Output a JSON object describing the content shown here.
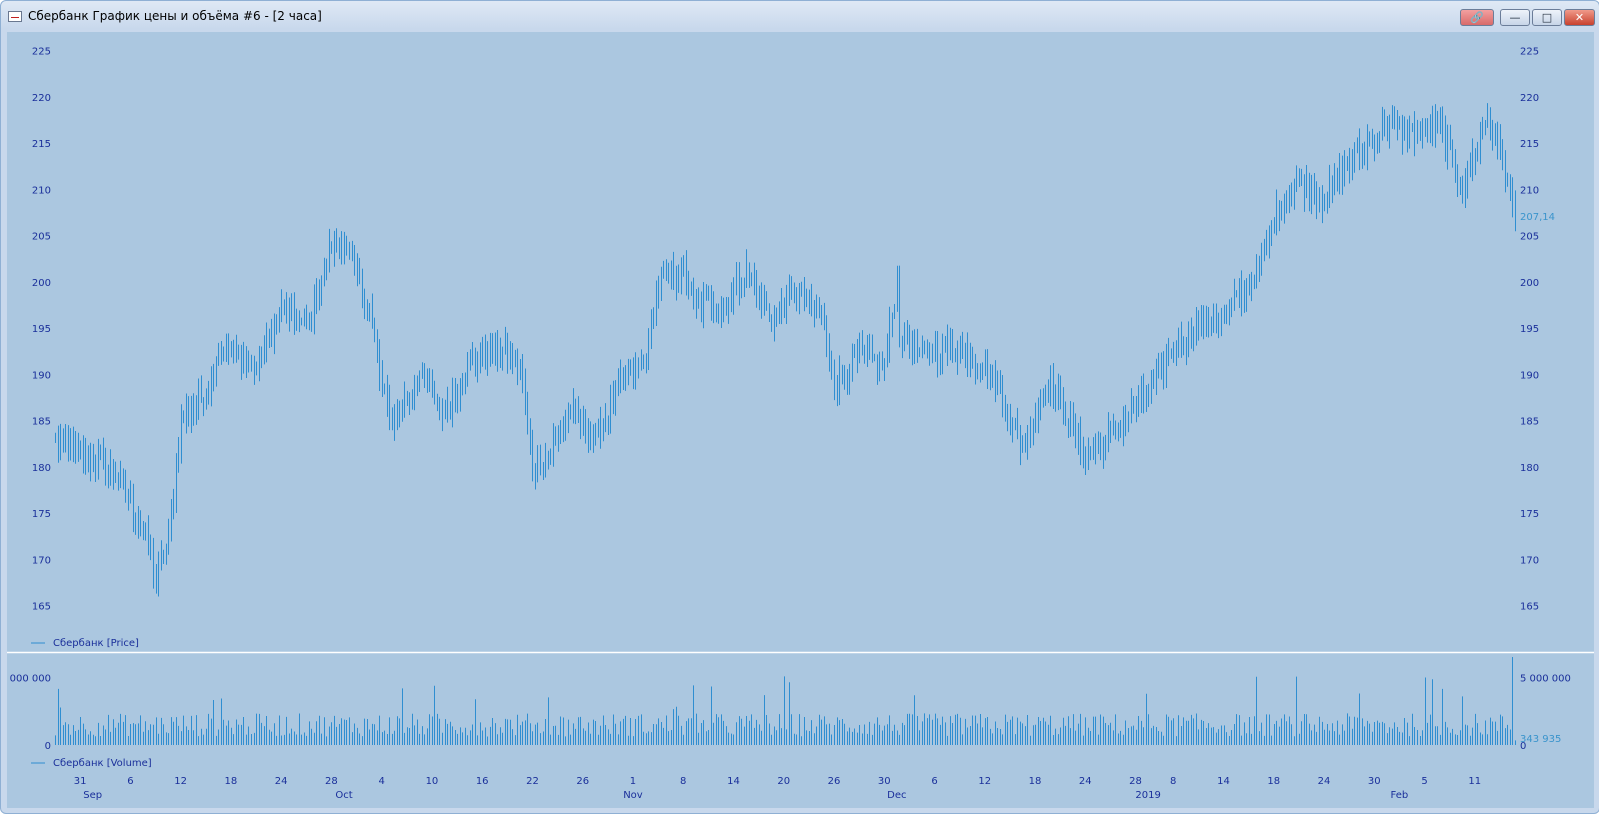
{
  "window": {
    "title": "Сбербанк График цены и объёма #6 - [2 часа]",
    "buttons": {
      "link": "🔗",
      "minimize": "—",
      "maximize": "□",
      "close": "✕"
    }
  },
  "colors": {
    "background": "#abc7e0",
    "series": "#2f8ed1",
    "axis_text": "#1a2f9a"
  },
  "chart_data": [
    {
      "type": "bar",
      "ohlc": true,
      "legend": "Сбербанк [Price]",
      "ylim": [
        160,
        227
      ],
      "yticks": [
        165,
        170,
        175,
        180,
        185,
        190,
        195,
        200,
        205,
        210,
        215,
        220,
        225
      ],
      "last_value": 207.14,
      "last_label": "207,14",
      "anchors": [
        [
          "Aug 29",
          183
        ],
        [
          "Aug 31",
          181
        ],
        [
          "Sep 3",
          181
        ],
        [
          "Sep 5",
          179
        ],
        [
          "Sep 7",
          173
        ],
        [
          "Sep 10",
          168
        ],
        [
          "Sep 11",
          172
        ],
        [
          "Sep 12",
          185
        ],
        [
          "Sep 14",
          188
        ],
        [
          "Sep 17",
          193
        ],
        [
          "Sep 20",
          191
        ],
        [
          "Sep 24",
          197
        ],
        [
          "Sep 26",
          195
        ],
        [
          "Sep 28",
          204
        ],
        [
          "Oct 1",
          204
        ],
        [
          "Oct 3",
          197
        ],
        [
          "Oct 4",
          188
        ],
        [
          "Oct 5",
          185
        ],
        [
          "Oct 9",
          190
        ],
        [
          "Oct 11",
          186
        ],
        [
          "Oct 15",
          191
        ],
        [
          "Oct 17",
          193
        ],
        [
          "Oct 19",
          191
        ],
        [
          "Oct 22",
          180
        ],
        [
          "Oct 23",
          181
        ],
        [
          "Oct 25",
          186
        ],
        [
          "Oct 29",
          183
        ],
        [
          "Oct 31",
          189
        ],
        [
          "Nov 2",
          192
        ],
        [
          "Nov 6",
          200
        ],
        [
          "Nov 8",
          201
        ],
        [
          "Nov 9",
          197
        ],
        [
          "Nov 12",
          198
        ],
        [
          "Nov 13",
          197
        ],
        [
          "Nov 15",
          201
        ],
        [
          "Nov 19",
          196
        ],
        [
          "Nov 21",
          199
        ],
        [
          "Nov 23",
          196
        ],
        [
          "Nov 26",
          189
        ],
        [
          "Nov 28",
          192
        ],
        [
          "Nov 30",
          191
        ],
        [
          "Dec 1",
          200
        ],
        [
          "Dec 3",
          195
        ],
        [
          "Dec 5",
          192
        ],
        [
          "Dec 7",
          193
        ],
        [
          "Dec 11",
          192
        ],
        [
          "Dec 13",
          189
        ],
        [
          "Dec 14",
          185
        ],
        [
          "Dec 17",
          182
        ],
        [
          "Dec 19",
          189
        ],
        [
          "Dec 20",
          187
        ],
        [
          "Dec 24",
          181
        ],
        [
          "Dec 25",
          182
        ],
        [
          "Dec 27",
          185
        ],
        [
          "Jan 3",
          188
        ],
        [
          "Jan 8",
          193
        ],
        [
          "Jan 11",
          196
        ],
        [
          "Jan 14",
          196
        ],
        [
          "Jan 17",
          202
        ],
        [
          "Jan 18",
          207
        ],
        [
          "Jan 22",
          211
        ],
        [
          "Jan 24",
          209
        ],
        [
          "Jan 28",
          213
        ],
        [
          "Jan 31",
          217
        ],
        [
          "Feb 4",
          216
        ],
        [
          "Feb 6",
          217
        ],
        [
          "Feb 8",
          210
        ],
        [
          "Feb 11",
          214
        ],
        [
          "Feb 12",
          218
        ],
        [
          "Feb 13",
          214
        ],
        [
          "Feb 14",
          207
        ]
      ]
    },
    {
      "type": "bar",
      "legend": "Сбербанк [Volume]",
      "ylim": [
        0,
        6500000
      ],
      "yticks": [
        0,
        5000000
      ],
      "ytick_labels": [
        "0",
        "5 000 000"
      ],
      "last_value": 343935,
      "last_label": "343 935",
      "typical_volume": 1800000,
      "max_volume": 6500000
    }
  ],
  "x_axis": {
    "day_labels": [
      [
        "Aug 31",
        "31"
      ],
      [
        "Sep 6",
        "6"
      ],
      [
        "Sep 12",
        "12"
      ],
      [
        "Sep 18",
        "18"
      ],
      [
        "Sep 24",
        "24"
      ],
      [
        "Sep 28",
        "28"
      ],
      [
        "Oct 4",
        "4"
      ],
      [
        "Oct 10",
        "10"
      ],
      [
        "Oct 16",
        "16"
      ],
      [
        "Oct 22",
        "22"
      ],
      [
        "Oct 26",
        "26"
      ],
      [
        "Nov 1",
        "1"
      ],
      [
        "Nov 8",
        "8"
      ],
      [
        "Nov 14",
        "14"
      ],
      [
        "Nov 20",
        "20"
      ],
      [
        "Nov 26",
        "26"
      ],
      [
        "Nov 30",
        "30"
      ],
      [
        "Dec 6",
        "6"
      ],
      [
        "Dec 12",
        "12"
      ],
      [
        "Dec 18",
        "18"
      ],
      [
        "Dec 24",
        "24"
      ],
      [
        "Dec 28",
        "28"
      ],
      [
        "Jan 8",
        "8"
      ],
      [
        "Jan 14",
        "14"
      ],
      [
        "Jan 18",
        "18"
      ],
      [
        "Jan 24",
        "24"
      ],
      [
        "Jan 30",
        "30"
      ],
      [
        "Feb 5",
        "5"
      ],
      [
        "Feb 11",
        "11"
      ]
    ],
    "month_labels": [
      [
        "Sep 1",
        "Sep"
      ],
      [
        "Oct 1",
        "Oct"
      ],
      [
        "Nov 1",
        "Nov"
      ],
      [
        "Dec 1",
        "Dec"
      ],
      [
        "Jan 1",
        "2019"
      ],
      [
        "Feb 1",
        "Feb"
      ]
    ]
  }
}
